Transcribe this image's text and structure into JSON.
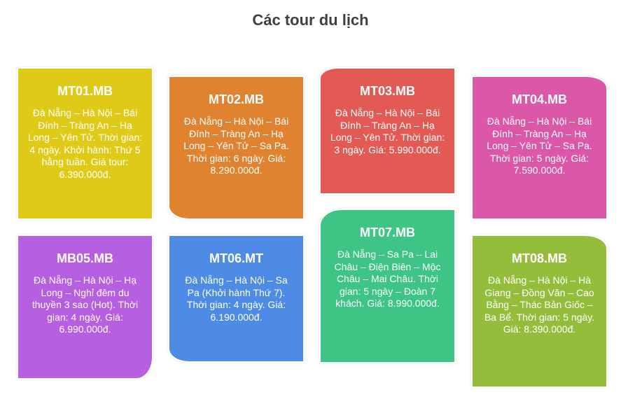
{
  "title": "Các tour du lịch",
  "tours": [
    {
      "code": "MT01.MB",
      "desc": "Đà Nẵng – Hà Nội – Bái Đính – Tràng An – Hạ Long – Yên Tử. Thời gian: 4 ngày. Khởi hành: Thứ 5 hằng tuần. Giá tour: 6.390.000đ.",
      "color": "#dfcb17"
    },
    {
      "code": "MT02.MB",
      "desc": "Đà Nẵng – Hà Nội – Bái Đính – Tràng An – Hạ Long – Yên Tử – Sa Pa. Thời gian: 6 ngày. Giá: 8.290.000đ.",
      "color": "#df8330"
    },
    {
      "code": "MT03.MB",
      "desc": "Đà Nẵng – Hà Nội – Bái Đính – Tràng An – Hạ Long – Yên Tử. Thời gian: 3 ngày. Giá: 5.990.000đ.",
      "color": "#e35a55"
    },
    {
      "code": "MT04.MB",
      "desc": "Đà Nẵng – Hà Nội – Bái Đính – Tràng An – Hạ Long – Yên Tử – Sa Pa. Thời gian: 5 ngày. Giá: 7.590.000đ.",
      "color": "#db57a8"
    },
    {
      "code": "MB05.MB",
      "desc": "Đà Nẵng – Hà Nội – Hạ Long – Nghỉ đêm du thuyền 3 sao (Hot). Thời gian: 4 ngày. Giá: 6.990.000đ.",
      "color": "#b65fe0"
    },
    {
      "code": "MT06.MT",
      "desc": "Đà Nẵng – Hà Nội – Sa Pa (Khởi hành Thứ 7). Thời gian: 4 ngày. Giá: 6.190.000đ.",
      "color": "#4d8be4"
    },
    {
      "code": "MT07.MB",
      "desc": "Đà Nẵng – Sa Pa – Lai Châu – Điện Biên – Mộc Châu – Mai Châu. Thời gian: 5 ngày – Đoàn 7 khách. Giá: 8.990.000đ.",
      "color": "#3ec585"
    },
    {
      "code": "MT08.MB",
      "desc": "Đà Nẵng – Hà Nội – Hà Giang – Đồng Văn – Cao Bằng – Thác Bản Giốc – Ba Bể. Thời gian: 5 ngày. Giá: 8.390.000đ.",
      "color": "#94bd3b"
    }
  ]
}
